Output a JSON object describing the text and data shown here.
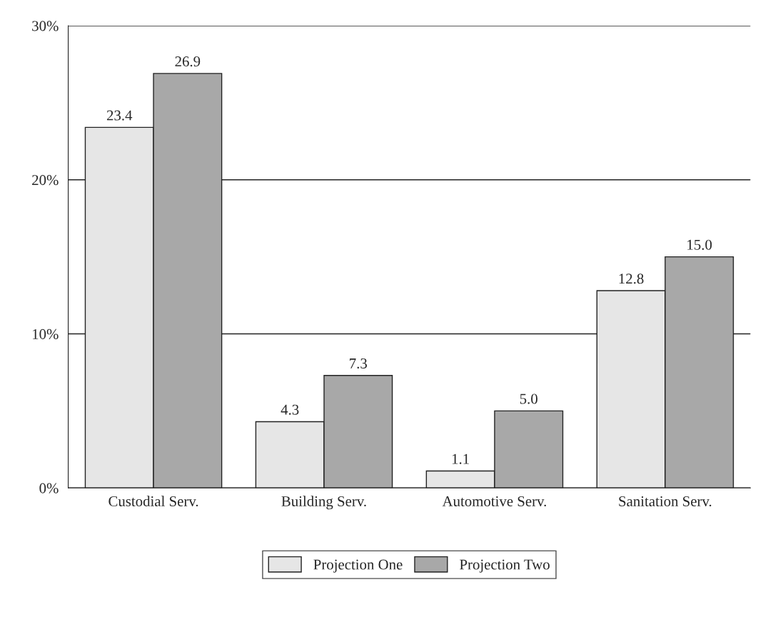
{
  "chart_data": {
    "type": "bar",
    "categories": [
      "Custodial Serv.",
      "Building Serv.",
      "Automotive Serv.",
      "Sanitation Serv."
    ],
    "series": [
      {
        "name": "Projection One",
        "color": "#e6e6e6",
        "values": [
          23.4,
          4.3,
          1.1,
          12.8
        ],
        "value_labels": [
          "23.4",
          "4.3",
          "1.1",
          "12.8"
        ]
      },
      {
        "name": "Projection Two",
        "color": "#a8a8a8",
        "values": [
          26.9,
          7.3,
          5.0,
          15.0
        ],
        "value_labels": [
          "26.9",
          "7.3",
          "5.0",
          "15.0"
        ]
      }
    ],
    "ylim": [
      0,
      30
    ],
    "yticks": [
      {
        "value": 0,
        "label": "0%"
      },
      {
        "value": 10,
        "label": "10%"
      },
      {
        "value": 20,
        "label": "20%"
      },
      {
        "value": 30,
        "label": "30%"
      }
    ],
    "grid": "y",
    "legend": "bottom"
  }
}
